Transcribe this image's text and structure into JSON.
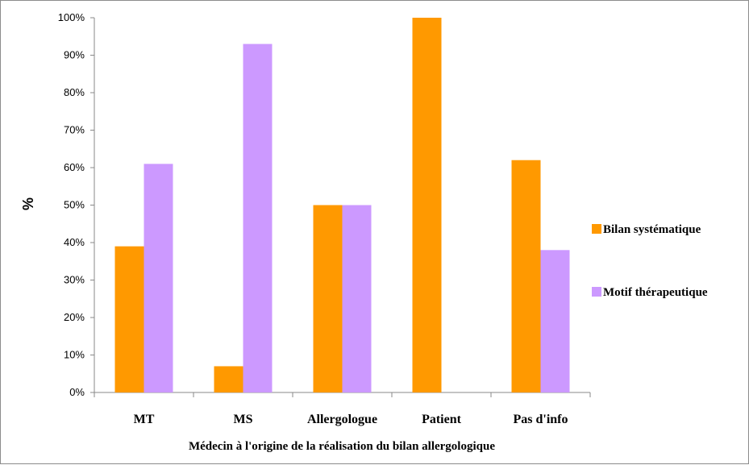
{
  "chart_data": {
    "type": "bar",
    "title": "",
    "xlabel": "Médecin à l'origine de la réalisation du bilan allergologique",
    "ylabel": "%",
    "ylim": [
      0,
      100
    ],
    "yticks": [
      "0%",
      "10%",
      "20%",
      "30%",
      "40%",
      "50%",
      "60%",
      "70%",
      "80%",
      "90%",
      "100%"
    ],
    "categories": [
      "MT",
      "MS",
      "Allergologue",
      "Patient",
      "Pas d'info"
    ],
    "series": [
      {
        "name": "Bilan systématique",
        "color": "#FF9900",
        "values": [
          39,
          7,
          50,
          100,
          62
        ]
      },
      {
        "name": "Motif thérapeutique",
        "color": "#CC99FF",
        "values": [
          61,
          93,
          50,
          0,
          38
        ]
      }
    ],
    "grid": false,
    "legend_position": "right"
  }
}
